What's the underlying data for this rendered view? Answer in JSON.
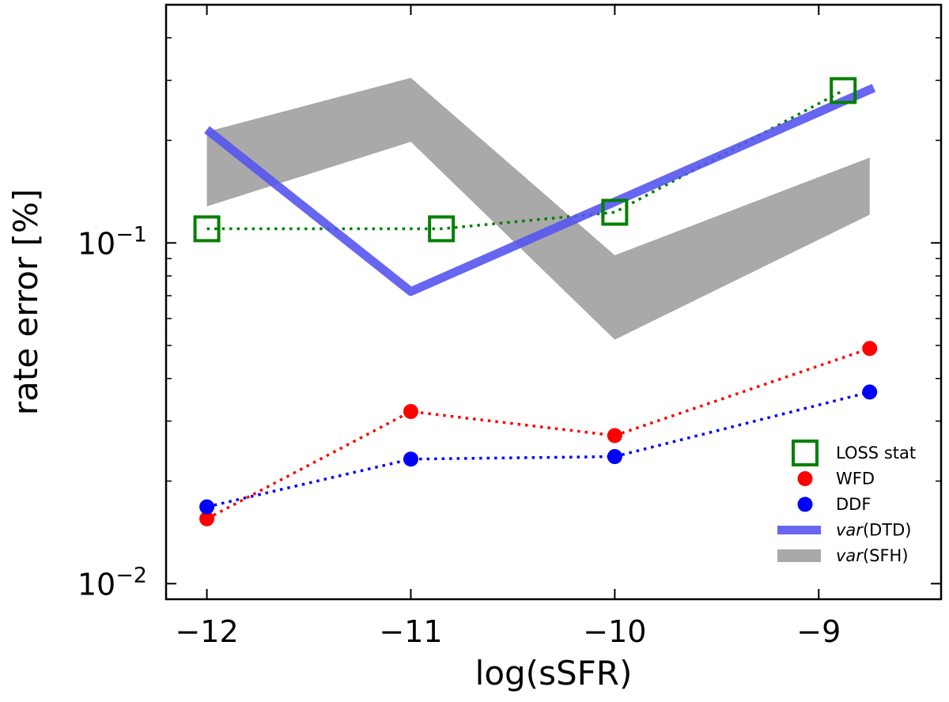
{
  "chart_data": {
    "type": "line",
    "title": "",
    "xlabel": "log(sSFR)",
    "ylabel": "rate error [%]",
    "xlim": [
      -12.2,
      -8.4
    ],
    "ylim": [
      0.009,
      0.5
    ],
    "yscale": "log",
    "x_ticks": [
      {
        "value": -12,
        "label": "−12"
      },
      {
        "value": -11,
        "label": "−11"
      },
      {
        "value": -10,
        "label": "−10"
      },
      {
        "value": -9,
        "label": "−9"
      }
    ],
    "y_ticks": [
      {
        "value": 0.1,
        "base": "10",
        "exp": "−1"
      },
      {
        "value": 0.01,
        "base": "10",
        "exp": "−2"
      }
    ],
    "grid": false,
    "legend_position": "bottom-right",
    "series": [
      {
        "name": "LOSS stat",
        "color": "#008000",
        "marker": "open-square",
        "linestyle": "dotted",
        "x": [
          -12.0,
          -10.85,
          -10.0,
          -8.88
        ],
        "y": [
          0.11,
          0.11,
          0.123,
          0.28
        ]
      },
      {
        "name": "WFD",
        "color": "#ff0000",
        "marker": "filled-circle",
        "linestyle": "dotted",
        "x": [
          -12,
          -11,
          -10,
          -8.75
        ],
        "y": [
          0.0155,
          0.032,
          0.0272,
          0.049
        ]
      },
      {
        "name": "DDF",
        "color": "#0000ff",
        "marker": "filled-circle",
        "linestyle": "dotted",
        "x": [
          -12,
          -11,
          -10,
          -8.75
        ],
        "y": [
          0.0168,
          0.0232,
          0.0236,
          0.0365
        ]
      },
      {
        "name": "var(DTD)",
        "name_italic": "var",
        "name_rest": "(DTD)",
        "color": "#5555ee",
        "linestyle": "thick-solid",
        "x": [
          -12,
          -11,
          -8.73
        ],
        "y": [
          0.215,
          0.072,
          0.285
        ]
      },
      {
        "name": "var(SFH)",
        "name_italic": "var",
        "name_rest": "(SFH)",
        "color": "#a9a9a9",
        "linestyle": "band",
        "x": [
          -12,
          -11,
          -10,
          -8.75
        ],
        "y_low": [
          0.128,
          0.198,
          0.052,
          0.121
        ],
        "y_high": [
          0.212,
          0.305,
          0.092,
          0.178
        ]
      }
    ]
  }
}
